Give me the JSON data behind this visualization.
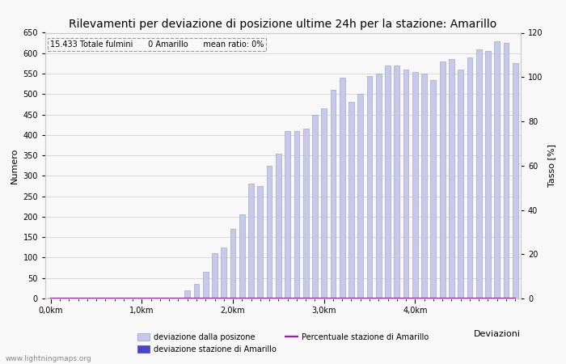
{
  "title": "Rilevamenti per deviazione di posizione ultime 24h per la stazione: Amarillo",
  "annotation": "15.433 Totale fulmini      0 Amarillo      mean ratio: 0%",
  "xlabel": "Deviazioni",
  "ylabel_left": "Numero",
  "ylabel_right": "Tasso [%]",
  "bar_values": [
    1,
    1,
    1,
    1,
    1,
    1,
    1,
    1,
    1,
    2,
    1,
    1,
    1,
    1,
    1,
    20,
    35,
    65,
    110,
    125,
    170,
    205,
    280,
    275,
    325,
    355,
    410,
    410,
    415,
    450,
    465,
    510,
    540,
    480,
    500,
    545,
    550,
    570,
    570,
    560,
    555,
    550,
    535,
    580,
    585,
    560,
    590,
    610,
    605,
    630,
    625,
    575
  ],
  "bar_color": "#c8c8e8",
  "bar_edge_color": "#9898c8",
  "station_bar_values": [
    0,
    0,
    0,
    0,
    0,
    0,
    0,
    0,
    0,
    0,
    0,
    0,
    0,
    0,
    0,
    0,
    0,
    0,
    0,
    0,
    0,
    0,
    0,
    0,
    0,
    0,
    0,
    0,
    0,
    0,
    0,
    0,
    0,
    0,
    0,
    0,
    0,
    0,
    0,
    0,
    0,
    0,
    0,
    0,
    0,
    0,
    0,
    0,
    0,
    0,
    0,
    0
  ],
  "station_bar_color": "#4444cc",
  "percentage_values": [
    0,
    0,
    0,
    0,
    0,
    0,
    0,
    0,
    0,
    0,
    0,
    0,
    0,
    0,
    0,
    0,
    0,
    0,
    0,
    0,
    0,
    0,
    0,
    0,
    0,
    0,
    0,
    0,
    0,
    0,
    0,
    0,
    0,
    0,
    0,
    0,
    0,
    0,
    0,
    0,
    0,
    0,
    0,
    0,
    0,
    0,
    0,
    0,
    0,
    0,
    0,
    0
  ],
  "percentage_color": "#cc00cc",
  "ylim_left": [
    0,
    650
  ],
  "ylim_right": [
    0,
    120
  ],
  "yticks_left": [
    0,
    50,
    100,
    150,
    200,
    250,
    300,
    350,
    400,
    450,
    500,
    550,
    600,
    650
  ],
  "yticks_right": [
    0,
    20,
    40,
    60,
    80,
    100,
    120
  ],
  "xtick_positions": [
    0,
    10,
    20,
    30,
    40
  ],
  "xtick_labels": [
    "0,0km",
    "1,0km",
    "2,0km",
    "3,0km",
    "4,0km"
  ],
  "n_bars": 52,
  "bar_width": 0.6,
  "bg_color": "#f8f8f8",
  "grid_color": "#cccccc",
  "legend_label_1": "deviazione dalla posizone",
  "legend_label_2": "deviazione stazione di Amarillo",
  "legend_label_3": "Percentuale stazione di Amarillo",
  "footer_text": "www.lightningmaps.org",
  "title_fontsize": 10,
  "axis_fontsize": 8,
  "tick_fontsize": 7,
  "legend_fontsize": 7
}
